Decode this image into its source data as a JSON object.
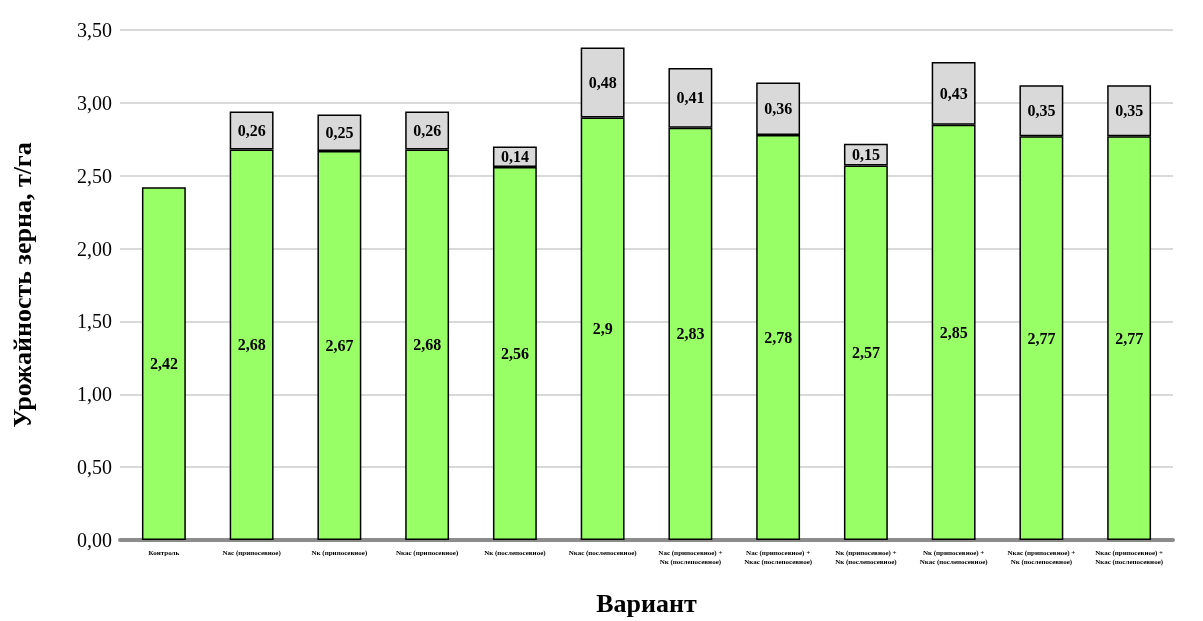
{
  "chart_data": {
    "type": "bar",
    "stacked": true,
    "data_labels": true,
    "grid": "y",
    "xlabel": "Вариант",
    "ylabel": "Урожайность зерна, т/га",
    "categories": [
      "Контроль",
      "Nас (припосевное)",
      "Nк (припосевное)",
      "Nкас (припосевное)",
      "Nк (послепосевное)",
      "Nкас (послепосевное)",
      "Nас (припосевное) + Nк (послепосевное)",
      "Nас (припосевное) + Nкас (послепосевное)",
      "Nк (припосевное) + Nк (послепосевное)",
      "Nк (припосевное) + Nкас (послепосевное)",
      "Nкас (припосевное) + Nк (послепосевное)",
      "Nкас (припосевное) + Nкас (послепосевное)"
    ],
    "series": [
      {
        "color": "#99ff66",
        "values": [
          2.42,
          2.68,
          2.67,
          2.68,
          2.56,
          2.9,
          2.83,
          2.78,
          2.57,
          2.85,
          2.77,
          2.77
        ],
        "value_labels": [
          "2,42",
          "2,68",
          "2,67",
          "2,68",
          "2,56",
          "2,9",
          "2,83",
          "2,78",
          "2,57",
          "2,85",
          "2,77",
          "2,77"
        ]
      },
      {
        "color": "#d9d9d9",
        "values": [
          null,
          0.26,
          0.25,
          0.26,
          0.14,
          0.48,
          0.41,
          0.36,
          0.15,
          0.43,
          0.35,
          0.35
        ],
        "value_labels": [
          null,
          "0,26",
          "0,25",
          "0,26",
          "0,14",
          "0,48",
          "0,41",
          "0,36",
          "0,15",
          "0,43",
          "0,35",
          "0,35"
        ]
      }
    ],
    "ylim": [
      0,
      3.5
    ],
    "yticks": [
      {
        "value": 0,
        "label": "0,00"
      },
      {
        "value": 0.5,
        "label": "0,50"
      },
      {
        "value": 1,
        "label": "1,00"
      },
      {
        "value": 1.5,
        "label": "1,50"
      },
      {
        "value": 2,
        "label": "2,00"
      },
      {
        "value": 2.5,
        "label": "2,50"
      },
      {
        "value": 3,
        "label": "3,00"
      },
      {
        "value": 3.5,
        "label": "3,50"
      }
    ]
  }
}
